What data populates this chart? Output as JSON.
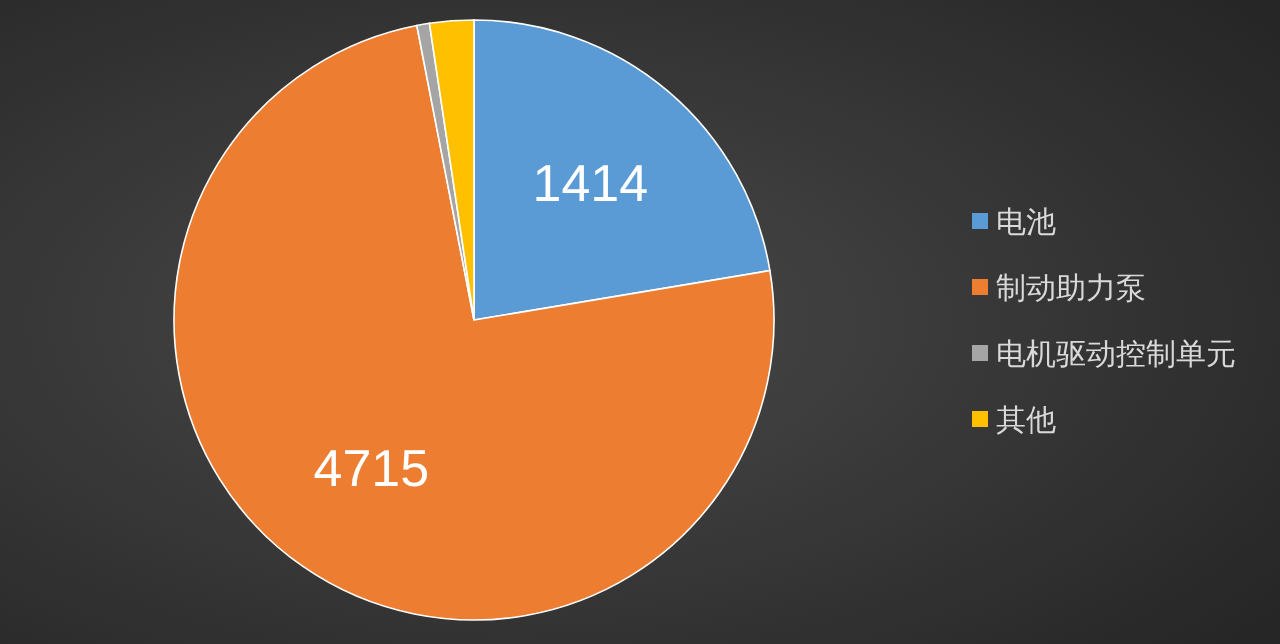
{
  "chart_data": {
    "type": "pie",
    "categories": [
      "电池",
      "制动助力泵",
      "电机驱动控制单元",
      "其他"
    ],
    "values": [
      1414,
      4715,
      43,
      150
    ],
    "colors": [
      "#5b9bd5",
      "#ed7d31",
      "#a5a5a5",
      "#ffc000"
    ],
    "value_labels": [
      "1414",
      "4715",
      null,
      null
    ],
    "legend": "right"
  }
}
